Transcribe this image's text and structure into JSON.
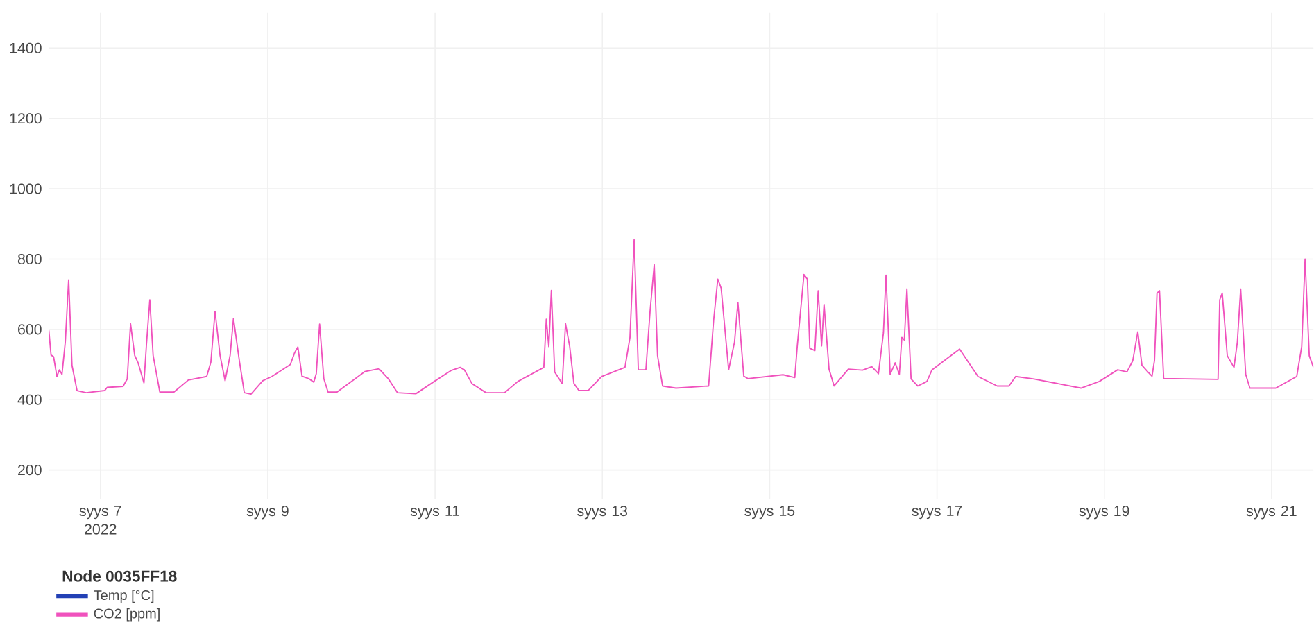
{
  "chart_data": {
    "type": "line",
    "legend_title": "Node 0035FF18",
    "legend": "bottom left",
    "grid": true,
    "marker": "none",
    "line_style": "solid",
    "xlim": [
      "2022-09-06T09:07",
      "2022-09-21T12:00"
    ],
    "ylim": [
      117,
      1500
    ],
    "xticks": [
      {
        "value": "2022-09-07",
        "label": "syys 7 2022"
      },
      {
        "value": "2022-09-09",
        "label": "syys 9"
      },
      {
        "value": "2022-09-11",
        "label": "syys 11"
      },
      {
        "value": "2022-09-13",
        "label": "syys 13"
      },
      {
        "value": "2022-09-15",
        "label": "syys 15"
      },
      {
        "value": "2022-09-17",
        "label": "syys 17"
      },
      {
        "value": "2022-09-19",
        "label": "syys 19"
      },
      {
        "value": "2022-09-21",
        "label": "syys 21"
      }
    ],
    "yticks": [
      200,
      400,
      600,
      800,
      1000,
      1200,
      1400
    ],
    "series": [
      {
        "name": "Temp [°C]",
        "color": "#2341b5"
      },
      {
        "name": "CO2 [ppm]",
        "color": "#f052bd",
        "x": [
          "2022-09-06T09:12",
          "2022-09-06T09:50",
          "2022-09-06T10:34",
          "2022-09-06T11:31",
          "2022-09-06T12:14",
          "2022-09-06T12:58",
          "2022-09-06T13:55",
          "2022-09-06T14:53",
          "2022-09-06T15:50",
          "2022-09-06T17:17",
          "2022-09-06T19:55",
          "2022-09-07T01:12",
          "2022-09-07T01:55",
          "2022-09-07T06:29",
          "2022-09-07T07:41",
          "2022-09-07T08:38",
          "2022-09-07T09:50",
          "2022-09-07T10:48",
          "2022-09-07T12:29",
          "2022-09-07T13:12",
          "2022-09-07T14:10",
          "2022-09-07T15:07",
          "2022-09-07T17:02",
          "2022-09-07T21:07",
          "2022-09-08T01:12",
          "2022-09-08T06:29",
          "2022-09-08T07:41",
          "2022-09-08T08:53",
          "2022-09-08T10:19",
          "2022-09-08T11:46",
          "2022-09-08T13:12",
          "2022-09-08T14:10",
          "2022-09-08T15:50",
          "2022-09-08T17:17",
          "2022-09-08T19:12",
          "2022-09-08T22:34",
          "2022-09-09T01:12",
          "2022-09-09T06:29",
          "2022-09-09T07:41",
          "2022-09-09T08:38",
          "2022-09-09T09:50",
          "2022-09-09T11:46",
          "2022-09-09T13:12",
          "2022-09-09T13:55",
          "2022-09-09T14:53",
          "2022-09-09T16:05",
          "2022-09-09T17:17",
          "2022-09-09T19:55",
          "2022-09-10T03:50",
          "2022-09-10T07:55",
          "2022-09-10T10:34",
          "2022-09-10T13:12",
          "2022-09-10T18:29",
          "2022-09-10T23:46",
          "2022-09-11T04:34",
          "2022-09-11T07:12",
          "2022-09-11T08:24",
          "2022-09-11T10:34",
          "2022-09-11T14:38",
          "2022-09-11T19:55",
          "2022-09-11T23:46",
          "2022-09-12T07:12",
          "2022-09-12T07:55",
          "2022-09-12T08:38",
          "2022-09-12T09:22",
          "2022-09-12T10:19",
          "2022-09-12T12:29",
          "2022-09-12T13:26",
          "2022-09-12T14:38",
          "2022-09-12T15:50",
          "2022-09-12T17:17",
          "2022-09-12T19:55",
          "2022-09-12T23:46",
          "2022-09-13T06:29",
          "2022-09-13T07:55",
          "2022-09-13T09:07",
          "2022-09-13T10:19",
          "2022-09-13T12:29",
          "2022-09-13T13:41",
          "2022-09-13T14:53",
          "2022-09-13T15:50",
          "2022-09-13T17:17",
          "2022-09-13T21:07",
          "2022-09-14T06:29",
          "2022-09-14T07:55",
          "2022-09-14T09:07",
          "2022-09-14T10:05",
          "2022-09-14T12:14",
          "2022-09-14T13:55",
          "2022-09-14T14:53",
          "2022-09-14T16:34",
          "2022-09-14T17:46",
          "2022-09-15T03:50",
          "2022-09-15T07:12",
          "2022-09-15T07:55",
          "2022-09-15T09:50",
          "2022-09-15T10:48",
          "2022-09-15T11:31",
          "2022-09-15T12:58",
          "2022-09-15T13:55",
          "2022-09-15T14:53",
          "2022-09-15T15:36",
          "2022-09-15T17:02",
          "2022-09-15T18:29",
          "2022-09-15T22:34",
          "2022-09-16T02:38",
          "2022-09-16T05:17",
          "2022-09-16T07:12",
          "2022-09-16T08:38",
          "2022-09-16T09:22",
          "2022-09-16T10:34",
          "2022-09-16T12:00",
          "2022-09-16T13:12",
          "2022-09-16T13:55",
          "2022-09-16T14:38",
          "2022-09-16T15:22",
          "2022-09-16T16:34",
          "2022-09-16T18:29",
          "2022-09-16T21:07",
          "2022-09-16T22:34",
          "2022-09-17T06:29",
          "2022-09-17T11:46",
          "2022-09-17T17:17",
          "2022-09-17T20:38",
          "2022-09-17T22:34",
          "2022-09-18T03:50",
          "2022-09-18T17:17",
          "2022-09-18T22:34",
          "2022-09-19T03:50",
          "2022-09-19T06:29",
          "2022-09-19T08:10",
          "2022-09-19T09:36",
          "2022-09-19T10:48",
          "2022-09-19T12:29",
          "2022-09-19T13:41",
          "2022-09-19T14:24",
          "2022-09-19T15:07",
          "2022-09-19T15:50",
          "2022-09-19T17:02",
          "2022-09-19T19:55",
          "2022-09-20T08:38",
          "2022-09-20T09:07",
          "2022-09-20T09:50",
          "2022-09-20T11:17",
          "2022-09-20T13:12",
          "2022-09-20T14:10",
          "2022-09-20T15:07",
          "2022-09-20T16:34",
          "2022-09-20T17:46",
          "2022-09-21T01:12",
          "2022-09-21T07:12",
          "2022-09-21T08:38",
          "2022-09-21T09:36",
          "2022-09-21T10:48",
          "2022-09-21T12:00"
        ],
        "values": [
          597,
          527,
          522,
          466,
          485,
          472,
          564,
          741,
          498,
          426,
          420,
          426,
          435,
          438,
          459,
          616,
          526,
          505,
          448,
          557,
          684,
          526,
          422,
          422,
          456,
          466,
          507,
          651,
          526,
          454,
          526,
          631,
          512,
          420,
          416,
          454,
          466,
          500,
          533,
          550,
          467,
          460,
          450,
          474,
          615,
          460,
          422,
          422,
          480,
          488,
          460,
          420,
          417,
          452,
          483,
          492,
          485,
          446,
          420,
          420,
          452,
          492,
          629,
          551,
          711,
          479,
          446,
          616,
          551,
          446,
          426,
          426,
          466,
          492,
          577,
          855,
          485,
          485,
          651,
          784,
          525,
          439,
          433,
          439,
          625,
          743,
          717,
          485,
          564,
          677,
          467,
          460,
          471,
          463,
          553,
          756,
          743,
          546,
          540,
          710,
          553,
          671,
          487,
          439,
          487,
          484,
          494,
          474,
          590,
          754,
          472,
          505,
          472,
          577,
          570,
          715,
          459,
          439,
          452,
          485,
          544,
          466,
          439,
          439,
          466,
          459,
          433,
          452,
          485,
          479,
          511,
          593,
          498,
          479,
          467,
          512,
          703,
          710,
          460,
          460,
          458,
          684,
          703,
          525,
          492,
          564,
          715,
          472,
          433,
          433,
          466,
          551,
          800,
          525,
          492
        ]
      }
    ]
  }
}
